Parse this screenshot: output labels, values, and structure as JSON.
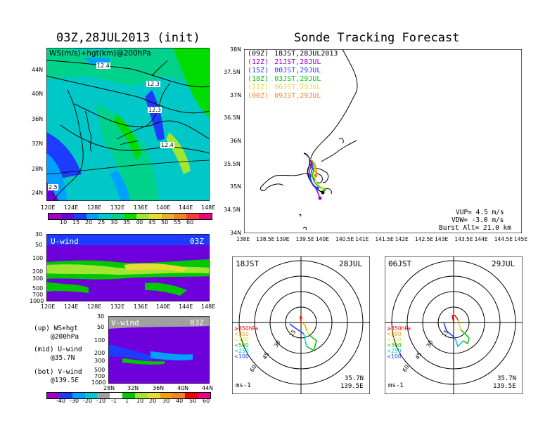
{
  "left_title": "03Z,28JUL2013 (init)",
  "right_title": "Sonde Tracking Forecast",
  "upper_map": {
    "label": "WS(m/s)+hgt(km)@200hPa",
    "contours": [
      "12.4",
      "12.3",
      "12.3",
      "12.4",
      "2.5"
    ],
    "lat_ticks": [
      "44N",
      "40N",
      "36N",
      "32N",
      "28N",
      "24N"
    ],
    "lon_ticks": [
      "120E",
      "124E",
      "128E",
      "132E",
      "136E",
      "140E",
      "144E",
      "148E"
    ],
    "colorbar": [
      "10",
      "15",
      "20",
      "25",
      "30",
      "35",
      "40",
      "45",
      "50",
      "55",
      "60"
    ],
    "colorbar_colors": [
      "#a000c8",
      "#6e00dc",
      "#1e3cff",
      "#00a0ff",
      "#00c8c8",
      "#00d28c",
      "#00dc00",
      "#a0e632",
      "#e6dc32",
      "#e6af2d",
      "#f08228",
      "#fa3c3c",
      "#f00082"
    ]
  },
  "u_panel": {
    "label": "U-wind",
    "time": "03Z",
    "p_ticks": [
      "30",
      "50",
      "100",
      "200",
      "300",
      "500",
      "700",
      "1000"
    ],
    "lon_ticks": [
      "120E",
      "124E",
      "128E",
      "132E",
      "136E",
      "140E",
      "144E",
      "148E"
    ]
  },
  "v_panel": {
    "label": "V-wind",
    "time": "03Z",
    "p_ticks": [
      "30",
      "50",
      "100",
      "200",
      "300",
      "500",
      "700",
      "1000"
    ],
    "lat_ticks": [
      "28N",
      "32N",
      "36N",
      "40N",
      "44N"
    ],
    "colorbar": [
      "-40",
      "-30",
      "-20",
      "-10",
      "-1",
      "1",
      "10",
      "20",
      "30",
      "40",
      "50",
      "60"
    ]
  },
  "legend_notes": [
    {
      "a": "(up) WS+hgt",
      "b": "@200hPa"
    },
    {
      "a": "(mid) U-wind",
      "b": "@35.7N"
    },
    {
      "a": "(bot) V-wind",
      "b": "@139.5E"
    }
  ],
  "track_map": {
    "legend": [
      {
        "code": "(09Z)",
        "time": "18JST,28JUL2013",
        "color": "#000000"
      },
      {
        "code": "(12Z)",
        "time": "21JST,28JUL",
        "color": "#a000c8"
      },
      {
        "code": "(15Z)",
        "time": "00JST,29JUL",
        "color": "#1e3cff"
      },
      {
        "code": "(18Z)",
        "time": "03JST,29JUL",
        "color": "#00c800"
      },
      {
        "code": "(21Z)",
        "time": "06JST,29JUL",
        "color": "#e6dc32"
      },
      {
        "code": "(00Z)",
        "time": "09JST,29JUL",
        "color": "#f08228"
      }
    ],
    "lat_ticks": [
      "38N",
      "37.5N",
      "37N",
      "36.5N",
      "36N",
      "35.5N",
      "35N",
      "34.5N",
      "34N"
    ],
    "lon_ticks": [
      "138E",
      "138.5E",
      "139E",
      "139.5E",
      "140E",
      "140.5E",
      "141E",
      "141.5E",
      "142E",
      "142.5E",
      "143E",
      "143.5E",
      "144E",
      "144.5E",
      "145E"
    ],
    "vup": "VUP= 4.5 m/s",
    "vdw": "VDW= -3.0 m/s",
    "burst": "Burst Alt= 21.0 km"
  },
  "hodo_left": {
    "time": "18JST",
    "date": "28JUL",
    "lat": "35.7N",
    "lon": "139.5E",
    "unit": "ms-1",
    "rings": [
      "15",
      "30",
      "45",
      "60"
    ]
  },
  "hodo_right": {
    "time": "06JST",
    "date": "29JUL",
    "lat": "35.7N",
    "lon": "139.5E",
    "unit": "ms-1",
    "rings": [
      "15",
      "30",
      "45",
      "60"
    ]
  },
  "hodo_levels": [
    {
      "label": "≥850hPa",
      "color": "#f00000"
    },
    {
      "label": "<850",
      "color": "#f0a000"
    },
    {
      "label": "<700",
      "color": "#e6dc32"
    },
    {
      "label": "<500",
      "color": "#00c800"
    },
    {
      "label": "<250",
      "color": "#00c8c8"
    },
    {
      "label": "<100",
      "color": "#1e3cff"
    }
  ]
}
